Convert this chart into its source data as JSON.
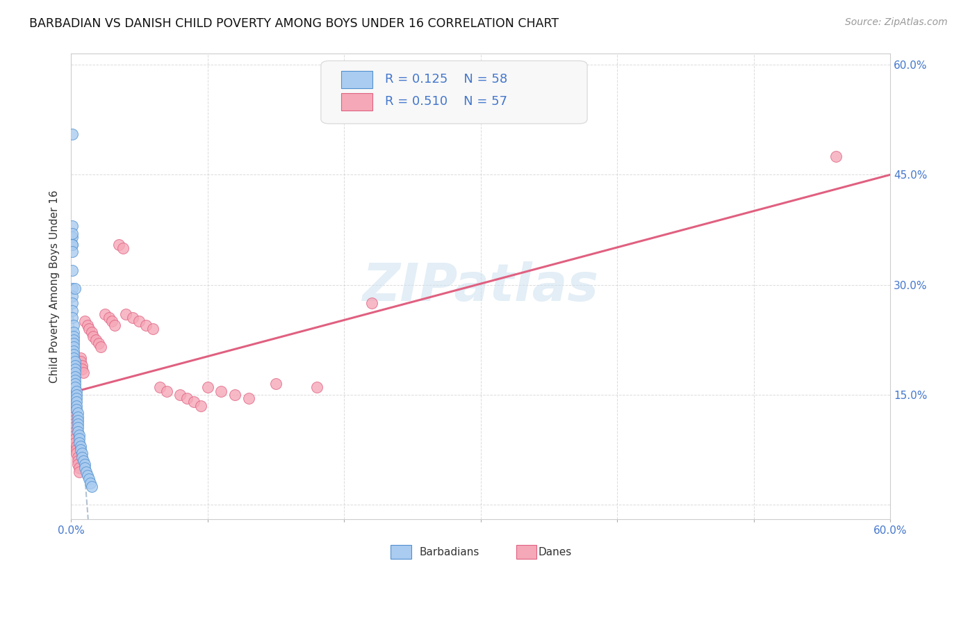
{
  "title": "BARBADIAN VS DANISH CHILD POVERTY AMONG BOYS UNDER 16 CORRELATION CHART",
  "source": "Source: ZipAtlas.com",
  "ylabel": "Child Poverty Among Boys Under 16",
  "xmin": 0.0,
  "xmax": 0.6,
  "ymin": -0.02,
  "ymax": 0.615,
  "xticks": [
    0.0,
    0.1,
    0.2,
    0.3,
    0.4,
    0.5,
    0.6
  ],
  "yticks": [
    0.0,
    0.15,
    0.3,
    0.45,
    0.6
  ],
  "ytick_labels": [
    "",
    "15.0%",
    "30.0%",
    "45.0%",
    "60.0%"
  ],
  "xtick_labels": [
    "0.0%",
    "",
    "",
    "",
    "",
    "",
    "60.0%"
  ],
  "R_barbadian": 0.125,
  "N_barbadian": 58,
  "R_danish": 0.51,
  "N_danish": 57,
  "color_barbadian": "#aaccf0",
  "color_danish": "#f5a8b8",
  "color_barbadian_line": "#5090d0",
  "color_danish_line": "#e06080",
  "color_text_blue": "#4477cc",
  "watermark": "ZIPatlas",
  "barbadian_x": [
    0.001,
    0.001,
    0.001,
    0.001,
    0.001,
    0.001,
    0.001,
    0.001,
    0.001,
    0.001,
    0.001,
    0.001,
    0.001,
    0.002,
    0.002,
    0.002,
    0.002,
    0.002,
    0.002,
    0.002,
    0.002,
    0.002,
    0.003,
    0.003,
    0.003,
    0.003,
    0.003,
    0.003,
    0.003,
    0.003,
    0.004,
    0.004,
    0.004,
    0.004,
    0.004,
    0.004,
    0.005,
    0.005,
    0.005,
    0.005,
    0.005,
    0.005,
    0.006,
    0.006,
    0.006,
    0.007,
    0.007,
    0.008,
    0.008,
    0.009,
    0.01,
    0.01,
    0.011,
    0.012,
    0.013,
    0.014,
    0.015,
    0.003
  ],
  "barbadian_y": [
    0.505,
    0.38,
    0.365,
    0.355,
    0.37,
    0.355,
    0.345,
    0.32,
    0.295,
    0.285,
    0.275,
    0.265,
    0.255,
    0.245,
    0.235,
    0.23,
    0.225,
    0.22,
    0.215,
    0.21,
    0.205,
    0.2,
    0.195,
    0.19,
    0.185,
    0.18,
    0.175,
    0.17,
    0.165,
    0.16,
    0.155,
    0.15,
    0.145,
    0.14,
    0.135,
    0.13,
    0.125,
    0.12,
    0.115,
    0.11,
    0.105,
    0.1,
    0.095,
    0.09,
    0.085,
    0.08,
    0.075,
    0.07,
    0.065,
    0.06,
    0.055,
    0.05,
    0.045,
    0.04,
    0.035,
    0.03,
    0.025,
    0.295
  ],
  "danish_x": [
    0.001,
    0.001,
    0.001,
    0.002,
    0.002,
    0.002,
    0.002,
    0.003,
    0.003,
    0.003,
    0.003,
    0.004,
    0.004,
    0.004,
    0.005,
    0.005,
    0.005,
    0.006,
    0.006,
    0.007,
    0.007,
    0.008,
    0.008,
    0.009,
    0.01,
    0.012,
    0.013,
    0.015,
    0.016,
    0.018,
    0.02,
    0.022,
    0.025,
    0.028,
    0.03,
    0.032,
    0.035,
    0.038,
    0.04,
    0.045,
    0.05,
    0.055,
    0.06,
    0.065,
    0.07,
    0.08,
    0.085,
    0.09,
    0.095,
    0.1,
    0.11,
    0.12,
    0.13,
    0.15,
    0.18,
    0.22,
    0.56
  ],
  "danish_y": [
    0.135,
    0.13,
    0.125,
    0.12,
    0.115,
    0.11,
    0.105,
    0.1,
    0.095,
    0.09,
    0.085,
    0.08,
    0.075,
    0.07,
    0.065,
    0.06,
    0.055,
    0.05,
    0.045,
    0.2,
    0.195,
    0.19,
    0.185,
    0.18,
    0.25,
    0.245,
    0.24,
    0.235,
    0.23,
    0.225,
    0.22,
    0.215,
    0.26,
    0.255,
    0.25,
    0.245,
    0.355,
    0.35,
    0.26,
    0.255,
    0.25,
    0.245,
    0.24,
    0.16,
    0.155,
    0.15,
    0.145,
    0.14,
    0.135,
    0.16,
    0.155,
    0.15,
    0.145,
    0.165,
    0.16,
    0.275,
    0.475
  ],
  "grid_color": "#cccccc",
  "background_color": "#ffffff",
  "legend_facecolor": "#f8f8f8"
}
